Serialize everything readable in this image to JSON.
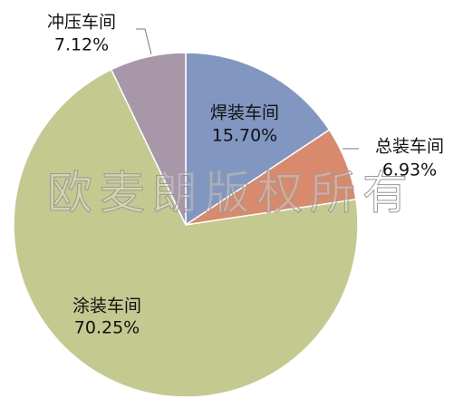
{
  "chart_data": {
    "type": "pie",
    "categories": [
      "焊装车间",
      "总装车间",
      "涂装车间",
      "冲压车间"
    ],
    "values": [
      15.7,
      6.93,
      70.25,
      7.12
    ],
    "value_labels": [
      "15.70%",
      "6.93%",
      "70.25%",
      "7.12%"
    ],
    "colors": [
      "#8196c1",
      "#d98a6c",
      "#c3c98f",
      "#a896a9"
    ],
    "watermark": "欧麦朗版权所有"
  }
}
